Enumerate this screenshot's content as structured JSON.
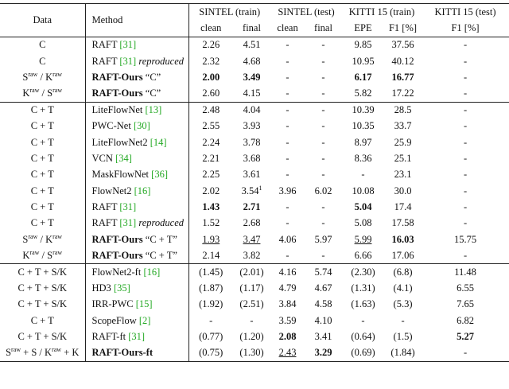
{
  "table": {
    "header": [
      [
        "Data",
        "Method",
        "SINTEL (train)",
        "SINTEL (test)",
        "KITTI 15 (train)",
        "KITTI 15 (test)"
      ],
      [
        "clean",
        "final",
        "clean",
        "final",
        "EPE",
        "F1 [%]",
        "F1 [%]"
      ]
    ],
    "groups": [
      [
        {
          "data": [
            {
              "text": "C"
            }
          ],
          "method": {
            "name": "RAFT",
            "cite": "[31]"
          },
          "values": [
            "2.26",
            "4.51",
            "-",
            "-",
            "9.85",
            "37.56",
            "-"
          ]
        },
        {
          "data": [
            {
              "text": "C"
            }
          ],
          "method": {
            "name": "RAFT",
            "cite": "[31]",
            "note": "reproduced"
          },
          "values": [
            "2.32",
            "4.68",
            "-",
            "-",
            "10.95",
            "40.12",
            "-"
          ]
        },
        {
          "data": [
            {
              "text": "S"
            },
            {
              "text": "raw",
              "sup": true
            },
            {
              "text": "/ K"
            },
            {
              "text": "raw",
              "sup": true
            }
          ],
          "method": {
            "name": "RAFT-Ours",
            "bold": true,
            "suffix": "“C”"
          },
          "values": [
            {
              "text": "2.00",
              "style": "bold"
            },
            {
              "text": "3.49",
              "style": "bold"
            },
            "-",
            "-",
            {
              "text": "6.17",
              "style": "bold"
            },
            {
              "text": "16.77",
              "style": "bold"
            },
            "-"
          ]
        },
        {
          "data": [
            {
              "text": "K"
            },
            {
              "text": "raw",
              "sup": true
            },
            {
              "text": "/ S"
            },
            {
              "text": "raw",
              "sup": true
            }
          ],
          "method": {
            "name": "RAFT-Ours",
            "bold": true,
            "suffix": "“C”"
          },
          "values": [
            "2.60",
            "4.15",
            "-",
            "-",
            "5.82",
            "17.22",
            "-"
          ]
        }
      ],
      [
        {
          "data": [
            {
              "text": "C + T"
            }
          ],
          "method": {
            "name": "LiteFlowNet",
            "cite": "[13]"
          },
          "values": [
            "2.48",
            "4.04",
            "-",
            "-",
            "10.39",
            "28.5",
            "-"
          ]
        },
        {
          "data": [
            {
              "text": "C + T"
            }
          ],
          "method": {
            "name": "PWC-Net",
            "cite": "[30]"
          },
          "values": [
            "2.55",
            "3.93",
            "-",
            "-",
            "10.35",
            "33.7",
            "-"
          ]
        },
        {
          "data": [
            {
              "text": "C + T"
            }
          ],
          "method": {
            "name": "LiteFlowNet2",
            "cite": "[14]"
          },
          "values": [
            "2.24",
            "3.78",
            "-",
            "-",
            "8.97",
            "25.9",
            "-"
          ]
        },
        {
          "data": [
            {
              "text": "C + T"
            }
          ],
          "method": {
            "name": "VCN",
            "cite": "[34]"
          },
          "values": [
            "2.21",
            "3.68",
            "-",
            "-",
            "8.36",
            "25.1",
            "-"
          ]
        },
        {
          "data": [
            {
              "text": "C + T"
            }
          ],
          "method": {
            "name": "MaskFlowNet",
            "cite": "[36]"
          },
          "values": [
            "2.25",
            "3.61",
            "-",
            "-",
            "-",
            "23.1",
            "-"
          ]
        },
        {
          "data": [
            {
              "text": "C + T"
            }
          ],
          "method": {
            "name": "FlowNet2",
            "cite": "[16]"
          },
          "values": [
            "2.02",
            {
              "text": "3.54",
              "sup": "1"
            },
            "3.96",
            "6.02",
            "10.08",
            "30.0",
            "-"
          ]
        },
        {
          "data": [
            {
              "text": "C + T"
            }
          ],
          "method": {
            "name": "RAFT",
            "cite": "[31]"
          },
          "values": [
            {
              "text": "1.43",
              "style": "bold"
            },
            {
              "text": "2.71",
              "style": "bold"
            },
            "-",
            "-",
            {
              "text": "5.04",
              "style": "bold"
            },
            "17.4",
            "-"
          ]
        },
        {
          "data": [
            {
              "text": "C + T"
            }
          ],
          "method": {
            "name": "RAFT",
            "cite": "[31]",
            "note": "reproduced"
          },
          "values": [
            "1.52",
            "2.68",
            "-",
            "-",
            "5.08",
            "17.58",
            "-"
          ]
        },
        {
          "data": [
            {
              "text": "S"
            },
            {
              "text": "raw",
              "sup": true
            },
            {
              "text": "/ K"
            },
            {
              "text": "raw",
              "sup": true
            }
          ],
          "method": {
            "name": "RAFT-Ours",
            "bold": true,
            "suffix": "“C + T”"
          },
          "values": [
            {
              "text": "1.93",
              "style": "underline"
            },
            {
              "text": "3.47",
              "style": "underline"
            },
            "4.06",
            "5.97",
            {
              "text": "5.99",
              "style": "underline"
            },
            {
              "text": "16.03",
              "style": "bold"
            },
            "15.75"
          ]
        },
        {
          "data": [
            {
              "text": "K"
            },
            {
              "text": "raw",
              "sup": true
            },
            {
              "text": "/ S"
            },
            {
              "text": "raw",
              "sup": true
            }
          ],
          "method": {
            "name": "RAFT-Ours",
            "bold": true,
            "suffix": "“C + T”"
          },
          "values": [
            "2.14",
            "3.82",
            "-",
            "-",
            "6.66",
            "17.06",
            "-"
          ]
        }
      ],
      [
        {
          "data": [
            {
              "text": "C + T + S/K"
            }
          ],
          "method": {
            "name": "FlowNet2-ft",
            "cite": "[16]"
          },
          "values": [
            "(1.45)",
            "(2.01)",
            "4.16",
            "5.74",
            "(2.30)",
            "(6.8)",
            "11.48"
          ]
        },
        {
          "data": [
            {
              "text": "C + T + S/K"
            }
          ],
          "method": {
            "name": "HD3",
            "cite": "[35]"
          },
          "values": [
            "(1.87)",
            "(1.17)",
            "4.79",
            "4.67",
            "(1.31)",
            "(4.1)",
            "6.55"
          ]
        },
        {
          "data": [
            {
              "text": "C + T + S/K"
            }
          ],
          "method": {
            "name": "IRR-PWC",
            "cite": "[15]"
          },
          "values": [
            "(1.92)",
            "(2.51)",
            "3.84",
            "4.58",
            "(1.63)",
            "(5.3)",
            "7.65"
          ]
        },
        {
          "data": [
            {
              "text": "C + T"
            }
          ],
          "method": {
            "name": "ScopeFlow",
            "cite": "[2]"
          },
          "values": [
            "-",
            "-",
            "3.59",
            "4.10",
            "-",
            "-",
            "6.82"
          ]
        },
        {
          "data": [
            {
              "text": "C + T + S/K"
            }
          ],
          "method": {
            "name": "RAFT-ft",
            "cite": "[31]"
          },
          "values": [
            "(0.77)",
            "(1.20)",
            {
              "text": "2.08",
              "style": "bold"
            },
            "3.41",
            "(0.64)",
            "(1.5)",
            {
              "text": "5.27",
              "style": "bold"
            }
          ]
        },
        {
          "data": [
            {
              "text": "S"
            },
            {
              "text": "raw",
              "sup": true
            },
            {
              "text": "+ S / K"
            },
            {
              "text": "raw",
              "sup": true
            },
            {
              "text": "+ K"
            }
          ],
          "method": {
            "name": "RAFT-Ours-ft",
            "bold": true
          },
          "values": [
            "(0.75)",
            "(1.30)",
            {
              "text": "2.43",
              "style": "underline"
            },
            {
              "text": "3.29",
              "style": "bold"
            },
            "(0.69)",
            "(1.84)",
            "-"
          ]
        }
      ]
    ]
  }
}
